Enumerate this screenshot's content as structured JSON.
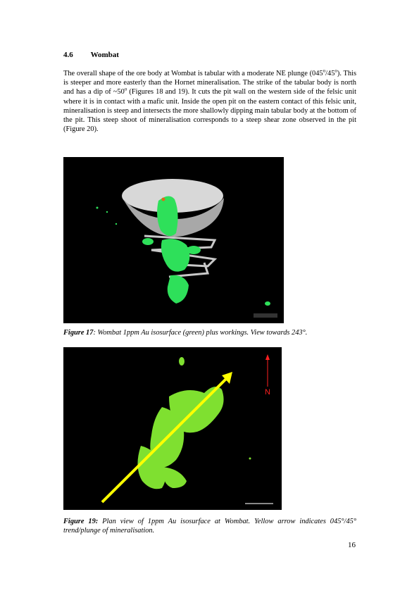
{
  "section": {
    "number": "4.6",
    "title": "Wombat"
  },
  "body": {
    "s1": "The overall shape of the ore body at Wombat is tabular with a moderate NE plunge (045",
    "s1_sup1": "o",
    "s1_mid": "/45",
    "s1_sup2": "o",
    "s1_end": "). This is steeper and more easterly than the Hornet mineralisation. The strike of the tabular body is north and has a dip of ~50",
    "s2_sup": "o",
    "s2": " (Figures 18 and 19).  It cuts the pit wall on the western side of the felsic unit where it is in contact with a mafic unit. Inside the open pit on the eastern contact of this felsic unit, mineralisation is steep and intersects the more shallowly dipping main tabular body at the bottom of the pit.  This steep shoot of mineralisation corresponds to a steep shear zone observed in the pit (Figure 20)."
  },
  "figure17": {
    "label": "Figure 17",
    "caption": ": Wombat 1ppm Au isosurface (green) plus workings.  View towards 243°.",
    "colors": {
      "background": "#000000",
      "ore": "#2ee05a",
      "workings": "#c8c8c8"
    }
  },
  "figure19": {
    "label": "Figure 19:",
    "caption": " Plan view of 1ppm Au isosurface at Wombat.  Yellow arrow indicates 045°/45° trend/plunge of mineralisation.",
    "north_label": "N",
    "colors": {
      "background": "#000000",
      "ore": "#7fe030",
      "arrow": "#ffff00",
      "north": "#ff2020"
    }
  },
  "page_number": "16"
}
